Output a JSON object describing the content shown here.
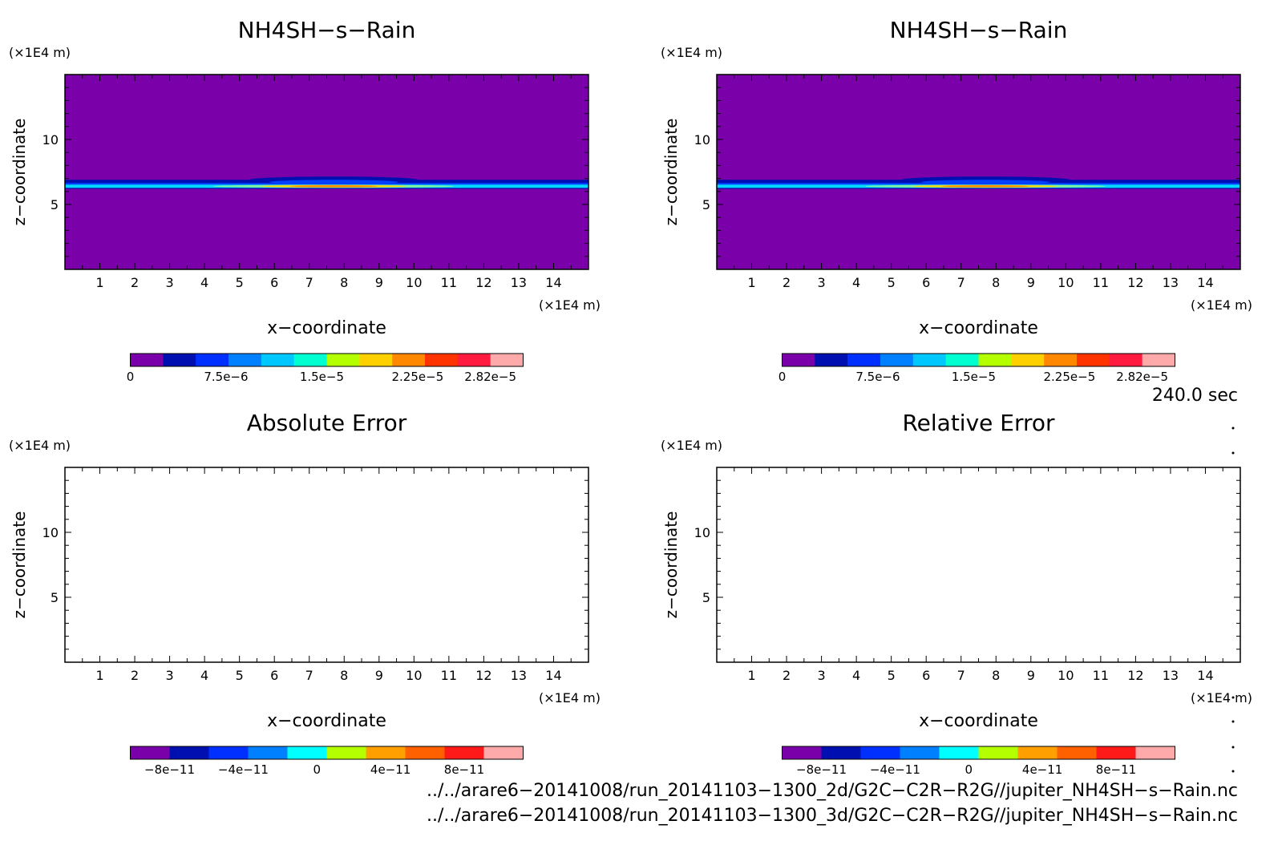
{
  "chart_data": [
    {
      "type": "heatmap",
      "title": "NH4SH−s−Rain",
      "xlabel": "x−coordinate",
      "ylabel": "z−coordinate",
      "x_unit": "(×1E4 m)",
      "z_unit": "(×1E4 m)",
      "xlim": [
        0,
        15
      ],
      "ylim": [
        0,
        15
      ],
      "xticks": [
        "1",
        "2",
        "3",
        "4",
        "5",
        "6",
        "7",
        "8",
        "9",
        "10",
        "11",
        "12",
        "13",
        "14"
      ],
      "yticks": [
        "5",
        "10"
      ],
      "field": {
        "background": 0,
        "layer_z": [
          6.2,
          6.9
        ],
        "core_z": 6.4,
        "bulge_peak_x": 7.7,
        "peak_value": 2.82e-05
      },
      "colorbar": {
        "labels": [
          "0",
          "7.5e−6",
          "1.5e−5",
          "2.25e−5",
          "2.82e−5"
        ],
        "label_values": [
          0,
          7.5e-06,
          1.5e-05,
          2.25e-05,
          2.82e-05
        ],
        "colors": [
          "#7a00aa",
          "#0010b0",
          "#0030ff",
          "#0080ff",
          "#00c8ff",
          "#00ffd0",
          "#b4ff00",
          "#ffd000",
          "#ff8800",
          "#ff3300",
          "#ff1a40",
          "#ffaaaa"
        ]
      }
    },
    {
      "type": "heatmap",
      "title": "NH4SH−s−Rain",
      "xlabel": "x−coordinate",
      "ylabel": "z−coordinate",
      "x_unit": "(×1E4 m)",
      "z_unit": "(×1E4 m)",
      "xlim": [
        0,
        15
      ],
      "ylim": [
        0,
        15
      ],
      "xticks": [
        "1",
        "2",
        "3",
        "4",
        "5",
        "6",
        "7",
        "8",
        "9",
        "10",
        "11",
        "12",
        "13",
        "14"
      ],
      "yticks": [
        "5",
        "10"
      ],
      "field": {
        "background": 0,
        "layer_z": [
          6.2,
          6.9
        ],
        "core_z": 6.4,
        "bulge_peak_x": 7.7,
        "peak_value": 2.82e-05
      },
      "colorbar": {
        "labels": [
          "0",
          "7.5e−6",
          "1.5e−5",
          "2.25e−5",
          "2.82e−5"
        ],
        "label_values": [
          0,
          7.5e-06,
          1.5e-05,
          2.25e-05,
          2.82e-05
        ],
        "colors": [
          "#7a00aa",
          "#0010b0",
          "#0030ff",
          "#0080ff",
          "#00c8ff",
          "#00ffd0",
          "#b4ff00",
          "#ffd000",
          "#ff8800",
          "#ff3300",
          "#ff1a40",
          "#ffaaaa"
        ]
      }
    },
    {
      "type": "heatmap",
      "title": "Absolute Error",
      "xlabel": "x−coordinate",
      "ylabel": "z−coordinate",
      "x_unit": "(×1E4 m)",
      "z_unit": "(×1E4 m)",
      "xlim": [
        0,
        15
      ],
      "ylim": [
        0,
        15
      ],
      "xticks": [
        "1",
        "2",
        "3",
        "4",
        "5",
        "6",
        "7",
        "8",
        "9",
        "10",
        "11",
        "12",
        "13",
        "14"
      ],
      "yticks": [
        "5",
        "10"
      ],
      "field": null,
      "colorbar": {
        "labels": [
          "−8e−11",
          "−4e−11",
          "0",
          "4e−11",
          "8e−11"
        ],
        "label_values": [
          -8e-11,
          -4e-11,
          0,
          4e-11,
          8e-11
        ],
        "colors": [
          "#7a00aa",
          "#0010b0",
          "#0030ff",
          "#0080ff",
          "#00ffff",
          "#b4ff00",
          "#ffa000",
          "#ff6000",
          "#ff1a1a",
          "#ffaaaa"
        ]
      }
    },
    {
      "type": "heatmap",
      "title": "Relative Error",
      "xlabel": "x−coordinate",
      "ylabel": "z−coordinate",
      "x_unit": "(×1E4 m)",
      "z_unit": "(×1E4 m)",
      "xlim": [
        0,
        15
      ],
      "ylim": [
        0,
        15
      ],
      "xticks": [
        "1",
        "2",
        "3",
        "4",
        "5",
        "6",
        "7",
        "8",
        "9",
        "10",
        "11",
        "12",
        "13",
        "14"
      ],
      "yticks": [
        "5",
        "10"
      ],
      "field": null,
      "colorbar": {
        "labels": [
          "−8e−11",
          "−4e−11",
          "0",
          "4e−11",
          "8e−11"
        ],
        "label_values": [
          -8e-11,
          -4e-11,
          0,
          4e-11,
          8e-11
        ],
        "colors": [
          "#7a00aa",
          "#0010b0",
          "#0030ff",
          "#0080ff",
          "#00ffff",
          "#b4ff00",
          "#ffa000",
          "#ff6000",
          "#ff1a1a",
          "#ffaaaa"
        ]
      }
    }
  ],
  "time_label": "240.0 sec",
  "file_paths": [
    "../../arare6−20141008/run_20141103−1300_2d/G2C−C2R−R2G//jupiter_NH4SH−s−Rain.nc",
    "../../arare6−20141008/run_20141103−1300_3d/G2C−C2R−R2G//jupiter_NH4SH−s−Rain.nc"
  ]
}
